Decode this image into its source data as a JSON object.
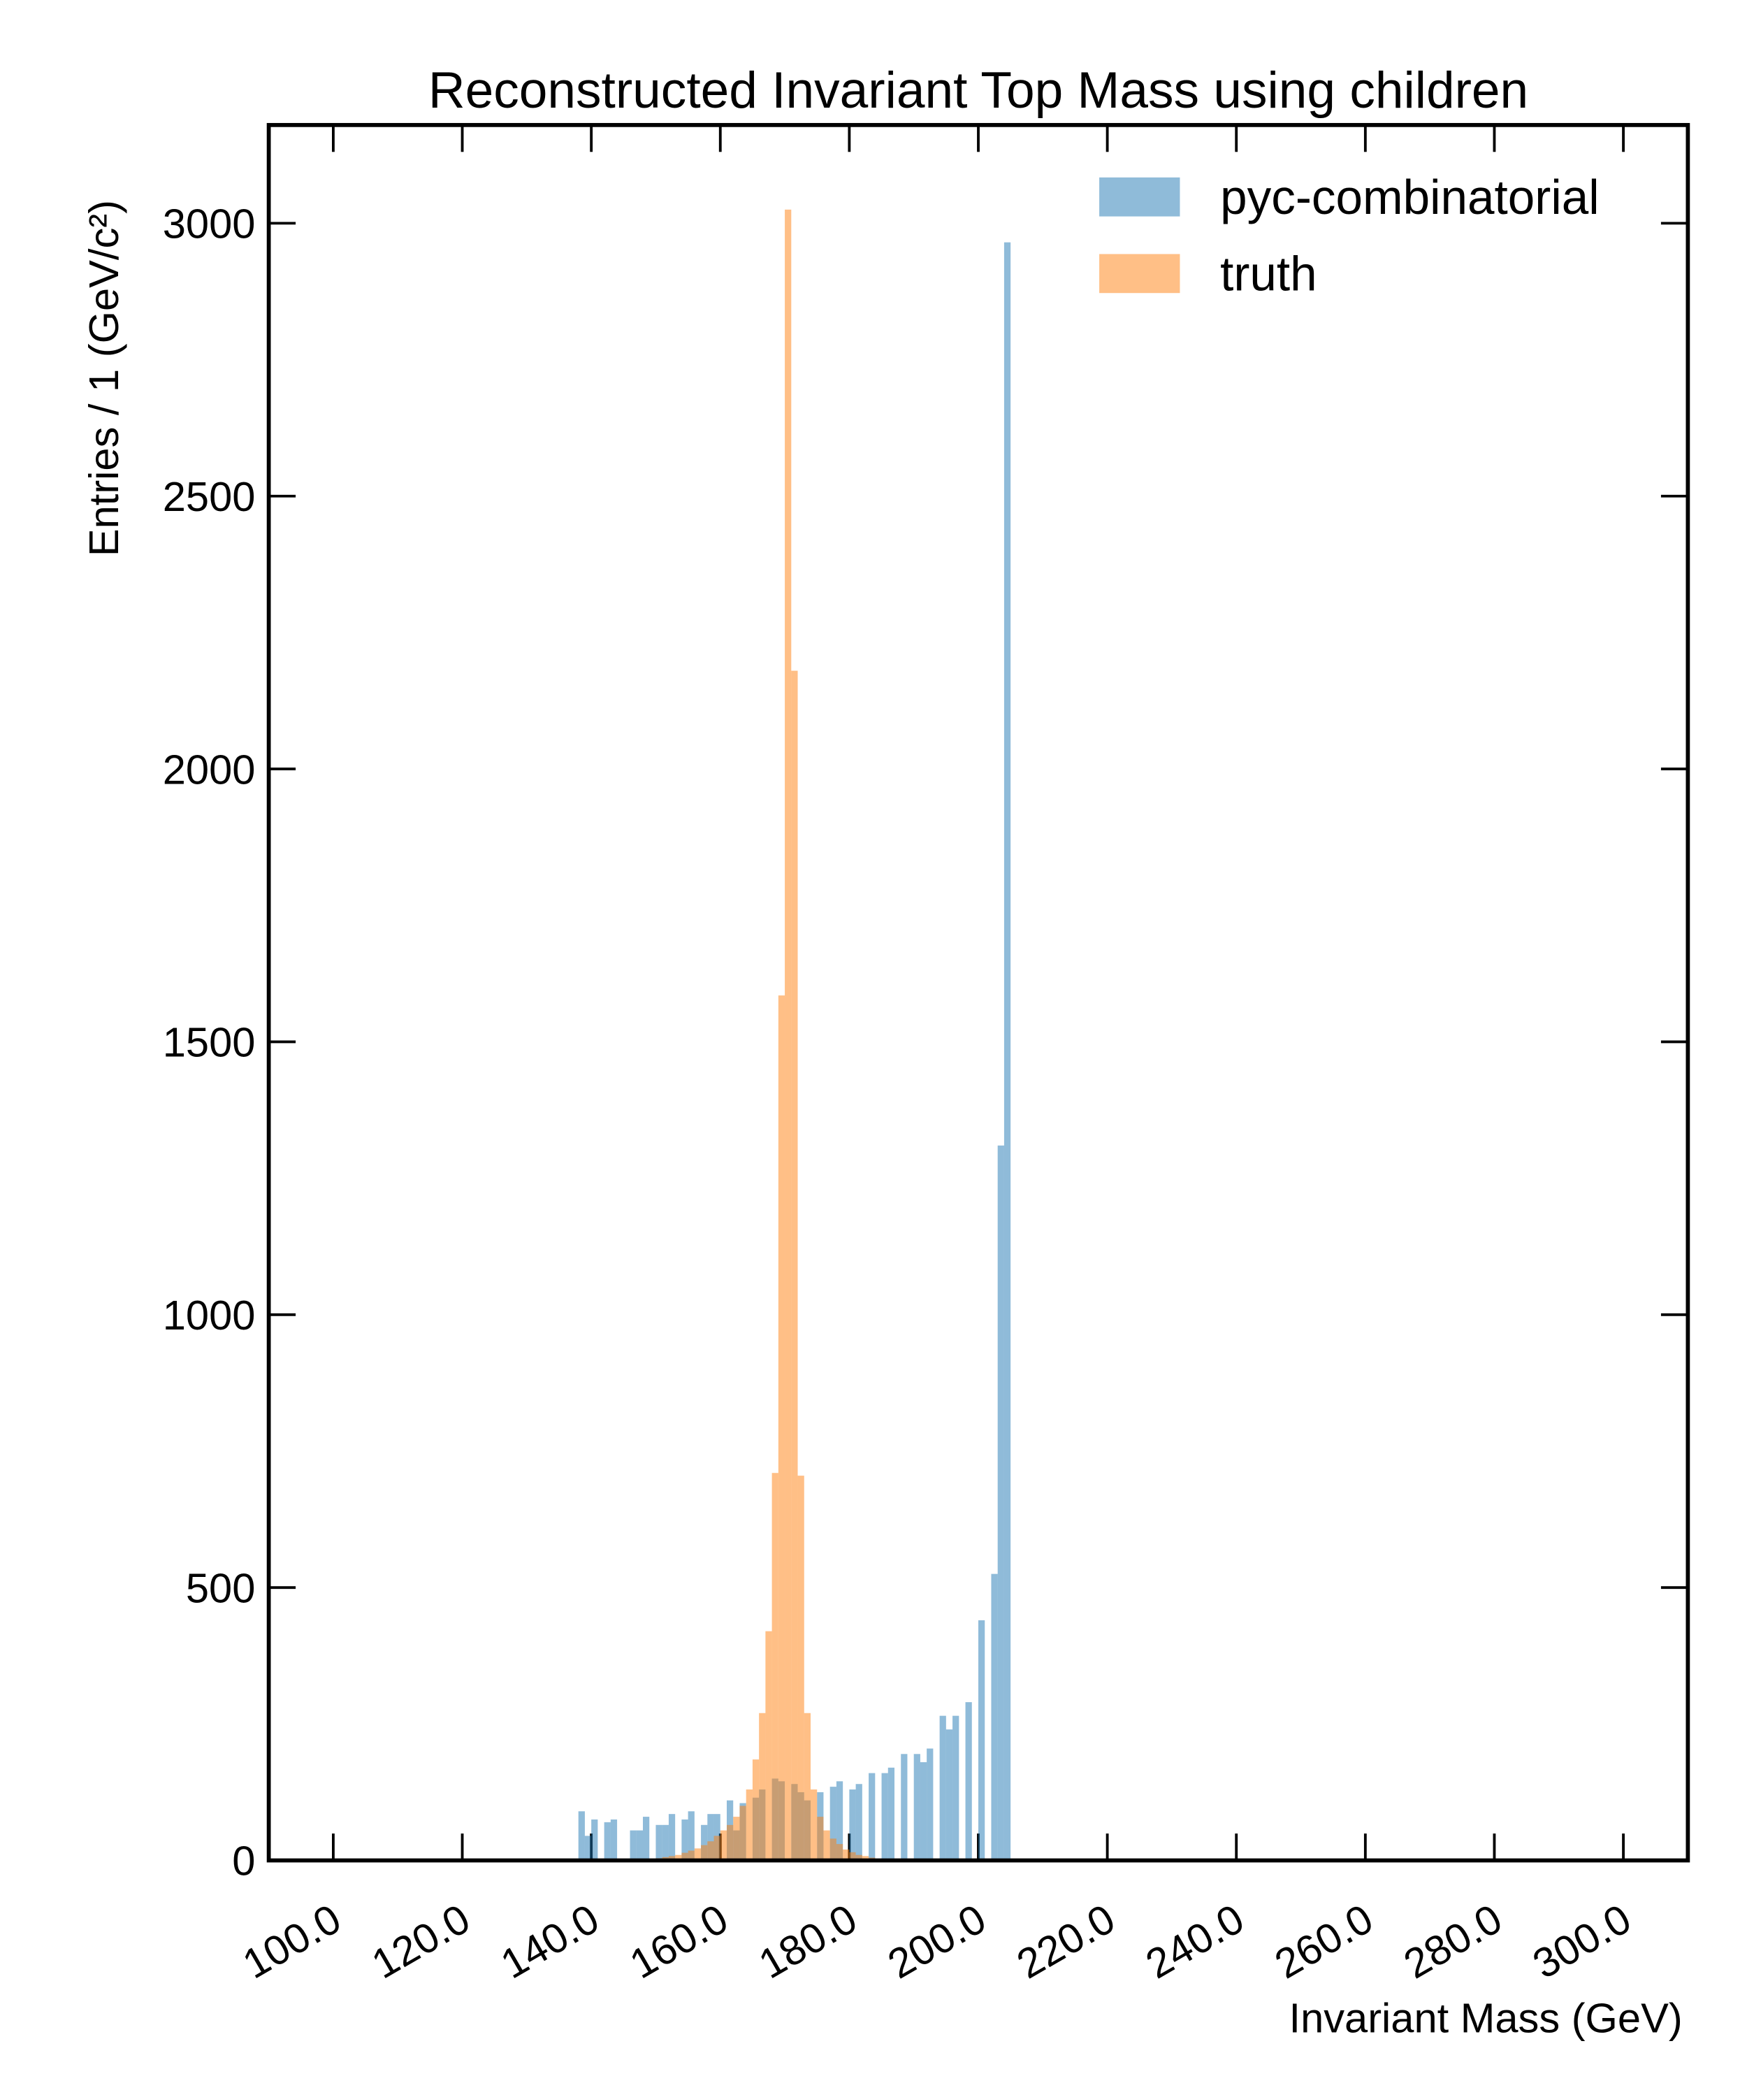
{
  "chart_data": {
    "type": "histogram",
    "title": "Reconstructed Invariant Top Mass using children",
    "x_label": "Invariant Mass (GeV)",
    "y_label": "Entries  / 1 (GeV/c²)",
    "bins": [
      138,
      139,
      140,
      141,
      142,
      143,
      144,
      145,
      146,
      147,
      148,
      149,
      150,
      151,
      152,
      153,
      154,
      155,
      156,
      157,
      158,
      159,
      160,
      161,
      162,
      163,
      164,
      165,
      166,
      167,
      168,
      169,
      170,
      171,
      172,
      173,
      174,
      175,
      176,
      177,
      178,
      179,
      180,
      181,
      182,
      183,
      184,
      185,
      186,
      187,
      188,
      189,
      190,
      191,
      192,
      193,
      194,
      195,
      196,
      197,
      198,
      199,
      200,
      201,
      202,
      203,
      204,
      205,
      206
    ],
    "series": [
      {
        "name": "pyc-combinatorial",
        "color": "#1f77b4",
        "values": [
          90,
          45,
          75,
          0,
          70,
          75,
          0,
          0,
          55,
          55,
          80,
          0,
          65,
          65,
          85,
          0,
          75,
          90,
          0,
          65,
          85,
          85,
          0,
          110,
          55,
          105,
          0,
          115,
          130,
          0,
          150,
          145,
          0,
          140,
          125,
          110,
          0,
          125,
          0,
          135,
          145,
          0,
          130,
          140,
          0,
          160,
          0,
          160,
          170,
          0,
          195,
          0,
          195,
          180,
          205,
          0,
          265,
          240,
          265,
          0,
          290,
          0,
          440,
          0,
          525,
          1310,
          2965,
          0
        ]
      },
      {
        "name": "truth",
        "color": "#ff7f0e",
        "values": [
          0,
          0,
          0,
          0,
          0,
          0,
          0,
          0,
          0,
          0,
          1,
          2,
          4,
          6,
          8,
          10,
          14,
          18,
          22,
          28,
          35,
          45,
          55,
          65,
          80,
          100,
          130,
          185,
          270,
          420,
          710,
          1585,
          3025,
          2180,
          705,
          270,
          130,
          80,
          55,
          40,
          30,
          20,
          15,
          10,
          8,
          5,
          3,
          2,
          0,
          0,
          0,
          0,
          0,
          0,
          0,
          0,
          0,
          0,
          0,
          0,
          0,
          0,
          0,
          0,
          0,
          0,
          0,
          0
        ]
      }
    ],
    "xlim": [
      90,
      310
    ],
    "ylim": [
      0,
      3180
    ],
    "xticks": [
      {
        "value": 100,
        "label": "100.0"
      },
      {
        "value": 120,
        "label": "120.0"
      },
      {
        "value": 140,
        "label": "140.0"
      },
      {
        "value": 160,
        "label": "160.0"
      },
      {
        "value": 180,
        "label": "180.0"
      },
      {
        "value": 200,
        "label": "200.0"
      },
      {
        "value": 220,
        "label": "220.0"
      },
      {
        "value": 240,
        "label": "240.0"
      },
      {
        "value": 260,
        "label": "260.0"
      },
      {
        "value": 280,
        "label": "280.0"
      },
      {
        "value": 300,
        "label": "300.0"
      }
    ],
    "yticks": [
      0,
      500,
      1000,
      1500,
      2000,
      2500,
      3000
    ],
    "opacity": 0.5,
    "legend": "upper right"
  }
}
